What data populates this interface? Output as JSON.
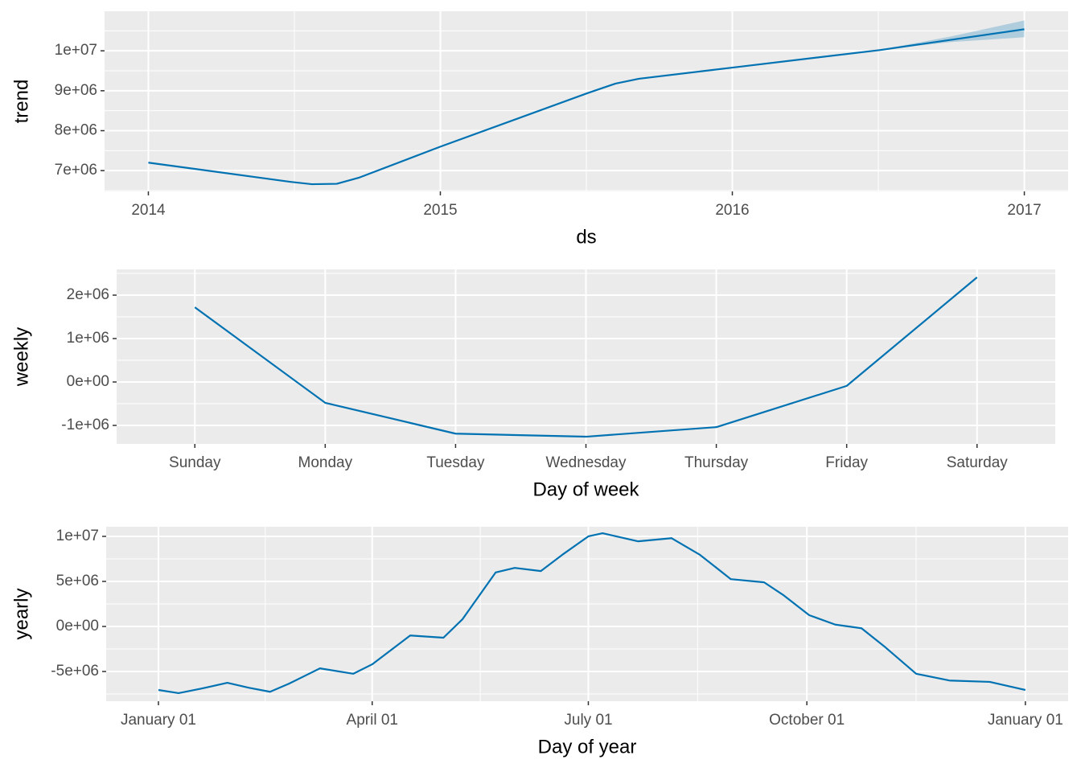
{
  "chart_data": [
    {
      "type": "line",
      "ylabel": "trend",
      "xlabel": "ds",
      "color": "#0072B2",
      "x": [
        2014,
        2014.485,
        2014.56,
        2014.645,
        2014.72,
        2015,
        2015.504,
        2015.6,
        2015.68,
        2016,
        2016.507,
        2017
      ],
      "values": [
        7200000,
        6720000,
        6660000,
        6670000,
        6820000,
        7600000,
        8940000,
        9180000,
        9300000,
        9580000,
        10020000,
        10540000
      ],
      "band": {
        "x": [
          2016.5,
          2016.75,
          2017
        ],
        "lower": [
          10020000,
          10220000,
          10340000
        ],
        "upper": [
          10020000,
          10360000,
          10760000
        ]
      },
      "xlim": [
        2013.85,
        2017.15
      ],
      "xticks": [
        2014,
        2015,
        2016,
        2017
      ],
      "ylim": [
        6480000,
        10990000
      ],
      "yticks": [
        {
          "value": 7000000,
          "label": "7e+06"
        },
        {
          "value": 8000000,
          "label": "8e+06"
        },
        {
          "value": 9000000,
          "label": "9e+06"
        },
        {
          "value": 10000000,
          "label": "1e+07"
        }
      ],
      "grid": true
    },
    {
      "type": "line",
      "ylabel": "weekly",
      "xlabel": "Day of week",
      "color": "#0072B2",
      "categories": [
        "Sunday",
        "Monday",
        "Tuesday",
        "Wednesday",
        "Thursday",
        "Friday",
        "Saturday"
      ],
      "values": [
        1720000,
        -480000,
        -1190000,
        -1260000,
        -1040000,
        -90000,
        2410000
      ],
      "ylim": [
        -1426000,
        2593000
      ],
      "yticks": [
        {
          "value": -1000000,
          "label": "-1e+06"
        },
        {
          "value": 0,
          "label": "0e+00"
        },
        {
          "value": 1000000,
          "label": "1e+06"
        },
        {
          "value": 2000000,
          "label": "2e+06"
        }
      ],
      "grid": true
    },
    {
      "type": "line",
      "ylabel": "yearly",
      "xlabel": "Day of year",
      "color": "#0072B2",
      "x": [
        0,
        8.5,
        18,
        29,
        38,
        47,
        55,
        68,
        82,
        90,
        106,
        120,
        128,
        142,
        150,
        161,
        170,
        181,
        187,
        202,
        216,
        228,
        241,
        255,
        263,
        274,
        285,
        296,
        306,
        319,
        333,
        350,
        365
      ],
      "values": [
        -7050000,
        -7400000,
        -6900000,
        -6250000,
        -6800000,
        -7250000,
        -6350000,
        -4650000,
        -5250000,
        -4200000,
        -1000000,
        -1250000,
        800000,
        6000000,
        6500000,
        6150000,
        7950000,
        10000000,
        10350000,
        9450000,
        9800000,
        7950000,
        5250000,
        4900000,
        3500000,
        1250000,
        200000,
        -200000,
        -2300000,
        -5250000,
        -6000000,
        -6150000,
        -7050000
      ],
      "xlim": [
        -22,
        383
      ],
      "xticks": [
        {
          "value": 0,
          "label": "January 01"
        },
        {
          "value": 90,
          "label": "April 01"
        },
        {
          "value": 181,
          "label": "July 01"
        },
        {
          "value": 273,
          "label": "October 01"
        },
        {
          "value": 365,
          "label": "January 01"
        }
      ],
      "ylim": [
        -8300000,
        11070000
      ],
      "yticks": [
        {
          "value": -5000000,
          "label": "-5e+06"
        },
        {
          "value": 0,
          "label": "0e+00"
        },
        {
          "value": 5000000,
          "label": "5e+06"
        },
        {
          "value": 10000000,
          "label": "1e+07"
        }
      ],
      "grid": true
    }
  ]
}
